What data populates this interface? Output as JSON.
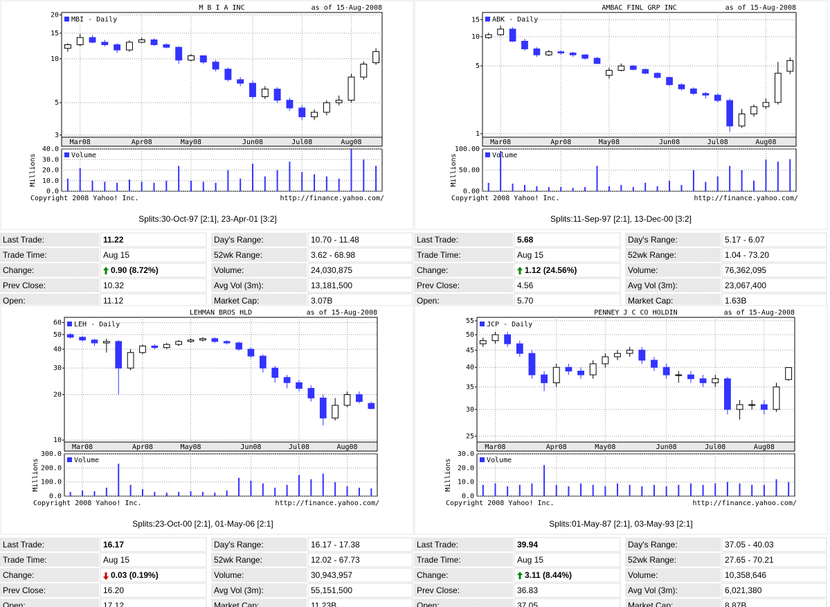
{
  "chart_data": [
    {
      "type": "candlestick",
      "title": "M B I A INC",
      "subtitle": "as of 15-Aug-2008",
      "legend": "MBI - Daily",
      "y_scale": "log",
      "categories": [
        null,
        "Mar08",
        null,
        null,
        null,
        null,
        "Apr08",
        null,
        null,
        null,
        "May08",
        null,
        null,
        null,
        null,
        "Jun08",
        null,
        null,
        null,
        "Jul08",
        null,
        null,
        null,
        "Aug08",
        null,
        null
      ],
      "open": [
        11.8,
        12.5,
        14,
        13,
        12.5,
        11.5,
        13,
        13.5,
        12.5,
        12,
        9.8,
        10.5,
        9.5,
        8.5,
        7.2,
        6.8,
        5.5,
        6.2,
        5.2,
        4.6,
        4.0,
        4.3,
        5.0,
        5.2,
        7.5,
        9.4
      ],
      "high": [
        12.8,
        14.8,
        14.5,
        13.5,
        12.8,
        13.4,
        14,
        13.8,
        12.8,
        12.2,
        10.8,
        10.6,
        9.8,
        8.7,
        7.5,
        7.1,
        6.5,
        6.4,
        5.4,
        4.8,
        4.5,
        5.2,
        5.6,
        7.9,
        9.6,
        11.8
      ],
      "low": [
        11.2,
        12.2,
        12.8,
        12.2,
        11,
        11.2,
        12.8,
        12.3,
        11.8,
        9.2,
        9.6,
        9.2,
        8.2,
        7,
        6.5,
        5.3,
        5.3,
        5,
        4.4,
        3.8,
        3.8,
        4.1,
        4.8,
        5,
        7.2,
        9.1
      ],
      "close": [
        12.5,
        14,
        13,
        12.5,
        11.5,
        13,
        13.5,
        12.5,
        12,
        9.8,
        10.5,
        9.5,
        8.5,
        7.2,
        6.8,
        5.5,
        6.2,
        5.2,
        4.6,
        4.0,
        4.3,
        5.0,
        5.2,
        7.5,
        9.2,
        11.22
      ],
      "ylim": [
        2.9,
        20.8
      ],
      "yticks": [
        20,
        15,
        10,
        5,
        3
      ],
      "up_color": "#ffffff",
      "down_color": "#3333ff",
      "volume": {
        "legend": "Volume",
        "ylabel": "Millions",
        "color": "#3333ff",
        "ylim": [
          0,
          40
        ],
        "yticks": [
          {
            "value": 0,
            "label": "0.0"
          },
          {
            "value": 10,
            "label": "10.0"
          },
          {
            "value": 20,
            "label": "20.0"
          },
          {
            "value": 30,
            "label": "30.0"
          },
          {
            "value": 40,
            "label": "40.0"
          }
        ],
        "values": [
          12,
          22,
          10,
          9,
          8,
          11,
          9,
          8,
          10,
          24,
          10,
          9,
          8,
          20,
          12,
          26,
          14,
          20,
          28,
          18,
          16,
          14,
          12,
          40,
          30,
          24
        ]
      },
      "copyright": "Copyright 2008 Yahoo! Inc.",
      "url": "http://finance.yahoo.com/"
    },
    {
      "type": "candlestick",
      "title": "AMBAC FINL GRP INC",
      "subtitle": "as of 15-Aug-2008",
      "legend": "ABK - Daily",
      "y_scale": "log",
      "categories": [
        null,
        "Mar08",
        null,
        null,
        null,
        null,
        "Apr08",
        null,
        null,
        null,
        "May08",
        null,
        null,
        null,
        null,
        "Jun08",
        null,
        null,
        null,
        "Jul08",
        null,
        null,
        null,
        "Aug08",
        null,
        null
      ],
      "open": [
        9.8,
        10.5,
        12,
        9,
        7.5,
        6.5,
        7,
        6.8,
        6.5,
        6,
        4.0,
        4.5,
        5,
        4.6,
        4.2,
        3.8,
        3.2,
        2.9,
        2.6,
        2.5,
        2.2,
        1.2,
        1.6,
        1.9,
        2.1,
        4.4
      ],
      "high": [
        11,
        13,
        12.5,
        9.5,
        7.8,
        7.3,
        7.2,
        7,
        6.6,
        6.2,
        4.8,
        5.3,
        5.1,
        4.7,
        4.3,
        3.9,
        3.3,
        3,
        2.7,
        2.6,
        2.3,
        1.8,
        2,
        2.3,
        5.5,
        6.1
      ],
      "low": [
        9.5,
        10.2,
        8.8,
        7.2,
        6.2,
        6.3,
        6.5,
        6.2,
        5.8,
        5.2,
        3.7,
        4.4,
        4.5,
        4.1,
        3.7,
        3.1,
        2.8,
        2.5,
        2.3,
        2.1,
        1.04,
        1.15,
        1.5,
        1.8,
        2,
        4.1
      ],
      "close": [
        10.5,
        12,
        9,
        7.5,
        6.5,
        7,
        6.8,
        6.5,
        6,
        5.3,
        4.5,
        5,
        4.6,
        4.2,
        3.8,
        3.2,
        2.9,
        2.6,
        2.5,
        2.2,
        1.2,
        1.6,
        1.9,
        2.1,
        4.2,
        5.68
      ],
      "ylim": [
        0.92,
        17.8
      ],
      "yticks": [
        15,
        10,
        5,
        1
      ],
      "up_color": "#ffffff",
      "down_color": "#3333ff",
      "volume": {
        "legend": "Volume",
        "ylabel": "Millions",
        "color": "#3333ff",
        "ylim": [
          0,
          100
        ],
        "yticks": [
          {
            "value": 0,
            "label": "0.00"
          },
          {
            "value": 50,
            "label": "50.00"
          },
          {
            "value": 100,
            "label": "100.00"
          }
        ],
        "values": [
          20,
          95,
          18,
          15,
          12,
          10,
          10,
          8,
          10,
          60,
          12,
          15,
          10,
          20,
          12,
          25,
          15,
          50,
          22,
          35,
          60,
          50,
          25,
          75,
          70,
          76
        ]
      },
      "copyright": "Copyright 2008 Yahoo! Inc.",
      "url": "http://finance.yahoo.com/"
    },
    {
      "type": "candlestick",
      "title": "LEHMAN BROS HLD",
      "subtitle": "as of 15-Aug-2008",
      "legend": "LEH - Daily",
      "y_scale": "log",
      "categories": [
        null,
        "Mar08",
        null,
        null,
        null,
        null,
        "Apr08",
        null,
        null,
        null,
        "May08",
        null,
        null,
        null,
        null,
        "Jun08",
        null,
        null,
        null,
        "Jul08",
        null,
        null,
        null,
        "Aug08",
        null,
        null
      ],
      "open": [
        50,
        48,
        46,
        44,
        45,
        30,
        38,
        42,
        41,
        43,
        45,
        46,
        47,
        45,
        44,
        40,
        36,
        30,
        26,
        24,
        22,
        19,
        14,
        17,
        20,
        17.5
      ],
      "high": [
        51,
        49,
        47,
        47,
        46,
        40,
        43,
        43,
        44,
        46,
        47,
        48,
        48,
        46,
        45,
        41,
        37,
        31,
        27,
        25,
        23,
        20,
        19,
        21,
        21,
        18
      ],
      "low": [
        47,
        45,
        42,
        38,
        20,
        29,
        37,
        40,
        40,
        42,
        44,
        45,
        44,
        43,
        39,
        35,
        28,
        24,
        22,
        21,
        18,
        12.5,
        13.5,
        16.5,
        17.5,
        16
      ],
      "close": [
        48,
        46,
        44,
        45,
        30,
        38,
        42,
        41,
        43,
        45,
        46,
        47,
        45,
        44,
        40,
        36,
        30,
        26,
        24,
        22,
        19,
        14,
        17,
        20,
        18,
        16.17
      ],
      "ylim": [
        9.7,
        65
      ],
      "yticks": [
        60,
        50,
        40,
        30,
        20,
        10
      ],
      "up_color": "#ffffff",
      "down_color": "#3333ff",
      "volume": {
        "legend": "Volume",
        "ylabel": "Millions",
        "color": "#3333ff",
        "ylim": [
          0,
          300
        ],
        "yticks": [
          {
            "value": 0,
            "label": "0.0"
          },
          {
            "value": 100,
            "label": "100.0"
          },
          {
            "value": 200,
            "label": "200.0"
          },
          {
            "value": 300,
            "label": "300.0"
          }
        ],
        "values": [
          30,
          40,
          35,
          60,
          230,
          80,
          50,
          30,
          25,
          30,
          35,
          30,
          25,
          40,
          130,
          110,
          90,
          60,
          80,
          150,
          120,
          160,
          100,
          70,
          60,
          55
        ]
      },
      "copyright": "Copyright 2008 Yahoo! Inc.",
      "url": "http://finance.yahoo.com/"
    },
    {
      "type": "candlestick",
      "title": "PENNEY J C CO HOLDIN",
      "subtitle": "as of 15-Aug-2008",
      "legend": "JCP - Daily",
      "y_scale": "log",
      "categories": [
        null,
        "Mar08",
        null,
        null,
        null,
        null,
        "Apr08",
        null,
        null,
        null,
        "May08",
        null,
        null,
        null,
        null,
        "Jun08",
        null,
        null,
        null,
        "Jul08",
        null,
        null,
        null,
        "Aug08",
        null,
        null
      ],
      "open": [
        47,
        48,
        50,
        47,
        44,
        38,
        36,
        40,
        39,
        38,
        41,
        43,
        44,
        45,
        42,
        40,
        38,
        38,
        37,
        36,
        37,
        30,
        31,
        31,
        30,
        36.8
      ],
      "high": [
        49,
        51,
        51,
        48,
        45,
        39,
        41,
        41,
        40,
        42,
        44,
        45,
        46,
        46,
        43,
        41,
        39,
        39,
        38,
        38,
        37.5,
        32,
        32,
        32,
        36,
        40.03
      ],
      "low": [
        46,
        47,
        46,
        43,
        37,
        34,
        35,
        38,
        37,
        37,
        40,
        42,
        43,
        41,
        39,
        37,
        36,
        36,
        35,
        35,
        29,
        28,
        30,
        29,
        29.5,
        36.5
      ],
      "close": [
        48,
        50,
        47,
        44,
        38,
        36,
        40,
        39,
        38,
        41,
        43,
        44,
        45,
        42,
        40,
        38,
        38,
        37,
        36,
        37,
        30,
        31,
        31,
        30,
        35,
        39.94
      ],
      "ylim": [
        24,
        56.3
      ],
      "yticks": [
        55,
        50,
        45,
        40,
        35,
        30,
        25
      ],
      "up_color": "#ffffff",
      "down_color": "#3333ff",
      "volume": {
        "legend": "Volume",
        "ylabel": "Millions",
        "color": "#3333ff",
        "ylim": [
          0,
          30
        ],
        "yticks": [
          {
            "value": 0,
            "label": "0.0"
          },
          {
            "value": 10,
            "label": "10.0"
          },
          {
            "value": 20,
            "label": "20.0"
          },
          {
            "value": 30,
            "label": "30.0"
          }
        ],
        "values": [
          8,
          9,
          7,
          8,
          9,
          22,
          8,
          7,
          9,
          8,
          7,
          9,
          8,
          7,
          8,
          7,
          8,
          9,
          8,
          9,
          10,
          9,
          8,
          8,
          12,
          10
        ]
      },
      "copyright": "Copyright 2008 Yahoo! Inc.",
      "url": "http://finance.yahoo.com/"
    }
  ],
  "quotes": [
    {
      "splits": "Splits:30-Oct-97 [2:1], 23-Apr-01 [3:2]",
      "left": [
        {
          "label": "Last Trade:",
          "value": "11.22"
        },
        {
          "label": "Trade Time:",
          "value": "Aug 15"
        },
        {
          "label": "Change:",
          "value": "0.90 (8.72%)",
          "direction": "up"
        },
        {
          "label": "Prev Close:",
          "value": "10.32"
        },
        {
          "label": "Open:",
          "value": "11.12"
        }
      ],
      "right": [
        {
          "label": "Day's Range:",
          "value": "10.70 - 11.48"
        },
        {
          "label": "52wk Range:",
          "value": "3.62 - 68.98"
        },
        {
          "label": "Volume:",
          "value": "24,030,875"
        },
        {
          "label": "Avg Vol (3m):",
          "value": "13,181,500"
        },
        {
          "label": "Market Cap:",
          "value": "3.07B"
        }
      ]
    },
    {
      "splits": "Splits:11-Sep-97 [2:1], 13-Dec-00 [3:2]",
      "left": [
        {
          "label": "Last Trade:",
          "value": "5.68"
        },
        {
          "label": "Trade Time:",
          "value": "Aug 15"
        },
        {
          "label": "Change:",
          "value": "1.12 (24.56%)",
          "direction": "up"
        },
        {
          "label": "Prev Close:",
          "value": "4.56"
        },
        {
          "label": "Open:",
          "value": "5.70"
        }
      ],
      "right": [
        {
          "label": "Day's Range:",
          "value": "5.17 - 6.07"
        },
        {
          "label": "52wk Range:",
          "value": "1.04 - 73.20"
        },
        {
          "label": "Volume:",
          "value": "76,362,095"
        },
        {
          "label": "Avg Vol (3m):",
          "value": "23,067,400"
        },
        {
          "label": "Market Cap:",
          "value": "1.63B"
        }
      ]
    },
    {
      "splits": "Splits:23-Oct-00 [2:1], 01-May-06 [2:1]",
      "left": [
        {
          "label": "Last Trade:",
          "value": "16.17"
        },
        {
          "label": "Trade Time:",
          "value": "Aug 15"
        },
        {
          "label": "Change:",
          "value": "0.03 (0.19%)",
          "direction": "down"
        },
        {
          "label": "Prev Close:",
          "value": "16.20"
        },
        {
          "label": "Open:",
          "value": "17.12"
        }
      ],
      "right": [
        {
          "label": "Day's Range:",
          "value": "16.17 - 17.38"
        },
        {
          "label": "52wk Range:",
          "value": "12.02 - 67.73"
        },
        {
          "label": "Volume:",
          "value": "30,943,957"
        },
        {
          "label": "Avg Vol (3m):",
          "value": "55,151,500"
        },
        {
          "label": "Market Cap:",
          "value": "11.23B"
        }
      ]
    },
    {
      "splits": "Splits:01-May-87 [2:1], 03-May-93 [2:1]",
      "left": [
        {
          "label": "Last Trade:",
          "value": "39.94"
        },
        {
          "label": "Trade Time:",
          "value": "Aug 15"
        },
        {
          "label": "Change:",
          "value": "3.11 (8.44%)",
          "direction": "up"
        },
        {
          "label": "Prev Close:",
          "value": "36.83"
        },
        {
          "label": "Open:",
          "value": "37.05"
        }
      ],
      "right": [
        {
          "label": "Day's Range:",
          "value": "37.05 - 40.03"
        },
        {
          "label": "52wk Range:",
          "value": "27.65 - 70.21"
        },
        {
          "label": "Volume:",
          "value": "10,358,646"
        },
        {
          "label": "Avg Vol (3m):",
          "value": "6,021,380"
        },
        {
          "label": "Market Cap:",
          "value": "8.87B"
        }
      ]
    }
  ]
}
